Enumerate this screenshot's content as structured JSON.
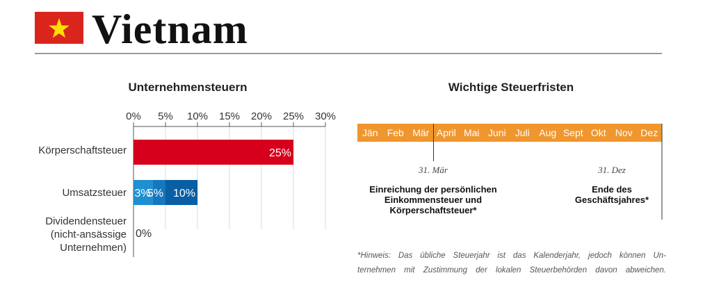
{
  "header": {
    "country": "Vietnam"
  },
  "chart_data": {
    "type": "bar",
    "orientation": "horizontal",
    "title": "Unternehmensteuern",
    "x_ticks": [
      "0%",
      "5%",
      "10%",
      "15%",
      "20%",
      "25%",
      "30%"
    ],
    "xlim": [
      0,
      30
    ],
    "grid": true,
    "categories": [
      [
        "Körperschaftsteuer"
      ],
      [
        "Umsatzsteuer"
      ],
      [
        "Dividendensteuer",
        "(nicht-ansässige",
        "Unternehmen)"
      ]
    ],
    "bars": [
      {
        "category": "Körperschaftsteuer",
        "segments": [
          {
            "value": 25,
            "label": "25%",
            "color": "#d6001c"
          }
        ]
      },
      {
        "category": "Umsatzsteuer",
        "segments": [
          {
            "value": 3,
            "label": "3%",
            "color": "#1e8fd0"
          },
          {
            "value": 2,
            "label": "5%",
            "color": "#1577be"
          },
          {
            "value": 5,
            "label": "10%",
            "color": "#0a5ea4"
          }
        ]
      },
      {
        "category": "Dividendensteuer (nicht-ansässige Unternehmen)",
        "segments": [
          {
            "value": 0,
            "label": "0%",
            "color": "#0a5ea4"
          }
        ]
      }
    ]
  },
  "deadlines": {
    "title": "Wichtige Steuerfristen",
    "months": [
      "Jän",
      "Feb",
      "Mär",
      "April",
      "Mai",
      "Juni",
      "Juli",
      "Aug",
      "Sept",
      "Okt",
      "Nov",
      "Dez"
    ],
    "bar_color": "#f0962e",
    "events": [
      {
        "date": "31. Mär",
        "lines": [
          "Einreichung der persönlichen",
          "Einkommensteuer und",
          "Körperschaftsteuer*"
        ]
      },
      {
        "date": "31. Dez",
        "lines": [
          "Ende des",
          "Geschäftsjahres*"
        ]
      }
    ]
  },
  "footnote": {
    "lines": [
      "*Hinweis: Das übliche Steuerjahr ist das Kalenderjahr, jedoch können Un-",
      "ternehmen mit Zustimmung der lokalen Steuerbehörden davon abweichen."
    ]
  },
  "colors": {
    "flag_red": "#da251d",
    "flag_star": "#ffde00",
    "rule": "#9a9a9a"
  }
}
